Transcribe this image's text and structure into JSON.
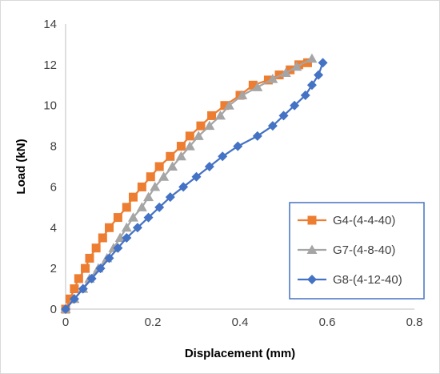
{
  "chart_data": {
    "type": "line",
    "xlabel": "Displacement (mm)",
    "ylabel": "Load (kN)",
    "xlim": [
      0,
      0.8
    ],
    "ylim": [
      0,
      14
    ],
    "x_ticks": [
      "0",
      "0.2",
      "0.4",
      "0.6",
      "0.8"
    ],
    "y_ticks": [
      "0",
      "2",
      "4",
      "6",
      "8",
      "10",
      "12",
      "14"
    ],
    "grid": false,
    "legend_position": "bottom-right",
    "series": [
      {
        "name": "G4-(4-4-40)",
        "color": "#ED7D31",
        "marker": "square",
        "points": [
          [
            0.0,
            0.0
          ],
          [
            0.01,
            0.5
          ],
          [
            0.02,
            1.0
          ],
          [
            0.03,
            1.5
          ],
          [
            0.045,
            2.0
          ],
          [
            0.055,
            2.5
          ],
          [
            0.07,
            3.0
          ],
          [
            0.085,
            3.5
          ],
          [
            0.1,
            4.0
          ],
          [
            0.12,
            4.5
          ],
          [
            0.14,
            5.0
          ],
          [
            0.155,
            5.5
          ],
          [
            0.175,
            6.0
          ],
          [
            0.195,
            6.5
          ],
          [
            0.215,
            7.0
          ],
          [
            0.24,
            7.5
          ],
          [
            0.265,
            8.0
          ],
          [
            0.285,
            8.5
          ],
          [
            0.31,
            9.0
          ],
          [
            0.335,
            9.5
          ],
          [
            0.365,
            10.0
          ],
          [
            0.4,
            10.5
          ],
          [
            0.43,
            11.0
          ],
          [
            0.465,
            11.25
          ],
          [
            0.49,
            11.5
          ],
          [
            0.515,
            11.75
          ],
          [
            0.535,
            12.0
          ],
          [
            0.555,
            12.1
          ]
        ]
      },
      {
        "name": "G7-(4-8-40)",
        "color": "#A5A5A5",
        "marker": "triangle",
        "points": [
          [
            0.0,
            0.0
          ],
          [
            0.02,
            0.5
          ],
          [
            0.04,
            1.0
          ],
          [
            0.055,
            1.5
          ],
          [
            0.075,
            2.0
          ],
          [
            0.095,
            2.5
          ],
          [
            0.11,
            3.0
          ],
          [
            0.125,
            3.5
          ],
          [
            0.14,
            4.0
          ],
          [
            0.155,
            4.5
          ],
          [
            0.175,
            5.0
          ],
          [
            0.19,
            5.5
          ],
          [
            0.205,
            6.0
          ],
          [
            0.225,
            6.5
          ],
          [
            0.245,
            7.0
          ],
          [
            0.265,
            7.5
          ],
          [
            0.285,
            8.0
          ],
          [
            0.305,
            8.5
          ],
          [
            0.33,
            9.0
          ],
          [
            0.355,
            9.5
          ],
          [
            0.375,
            10.0
          ],
          [
            0.405,
            10.5
          ],
          [
            0.44,
            10.9
          ],
          [
            0.475,
            11.3
          ],
          [
            0.505,
            11.6
          ],
          [
            0.53,
            11.9
          ],
          [
            0.565,
            12.3
          ]
        ]
      },
      {
        "name": "G8-(4-12-40)",
        "color": "#4472C4",
        "marker": "diamond",
        "points": [
          [
            0.0,
            0.0
          ],
          [
            0.02,
            0.5
          ],
          [
            0.04,
            1.0
          ],
          [
            0.06,
            1.5
          ],
          [
            0.08,
            2.0
          ],
          [
            0.1,
            2.5
          ],
          [
            0.12,
            3.0
          ],
          [
            0.14,
            3.5
          ],
          [
            0.165,
            4.0
          ],
          [
            0.19,
            4.5
          ],
          [
            0.215,
            5.0
          ],
          [
            0.24,
            5.5
          ],
          [
            0.27,
            6.0
          ],
          [
            0.3,
            6.5
          ],
          [
            0.33,
            7.0
          ],
          [
            0.36,
            7.5
          ],
          [
            0.395,
            8.0
          ],
          [
            0.44,
            8.5
          ],
          [
            0.475,
            9.0
          ],
          [
            0.5,
            9.5
          ],
          [
            0.525,
            10.0
          ],
          [
            0.55,
            10.5
          ],
          [
            0.565,
            11.0
          ],
          [
            0.58,
            11.5
          ],
          [
            0.59,
            12.1
          ]
        ]
      }
    ]
  }
}
